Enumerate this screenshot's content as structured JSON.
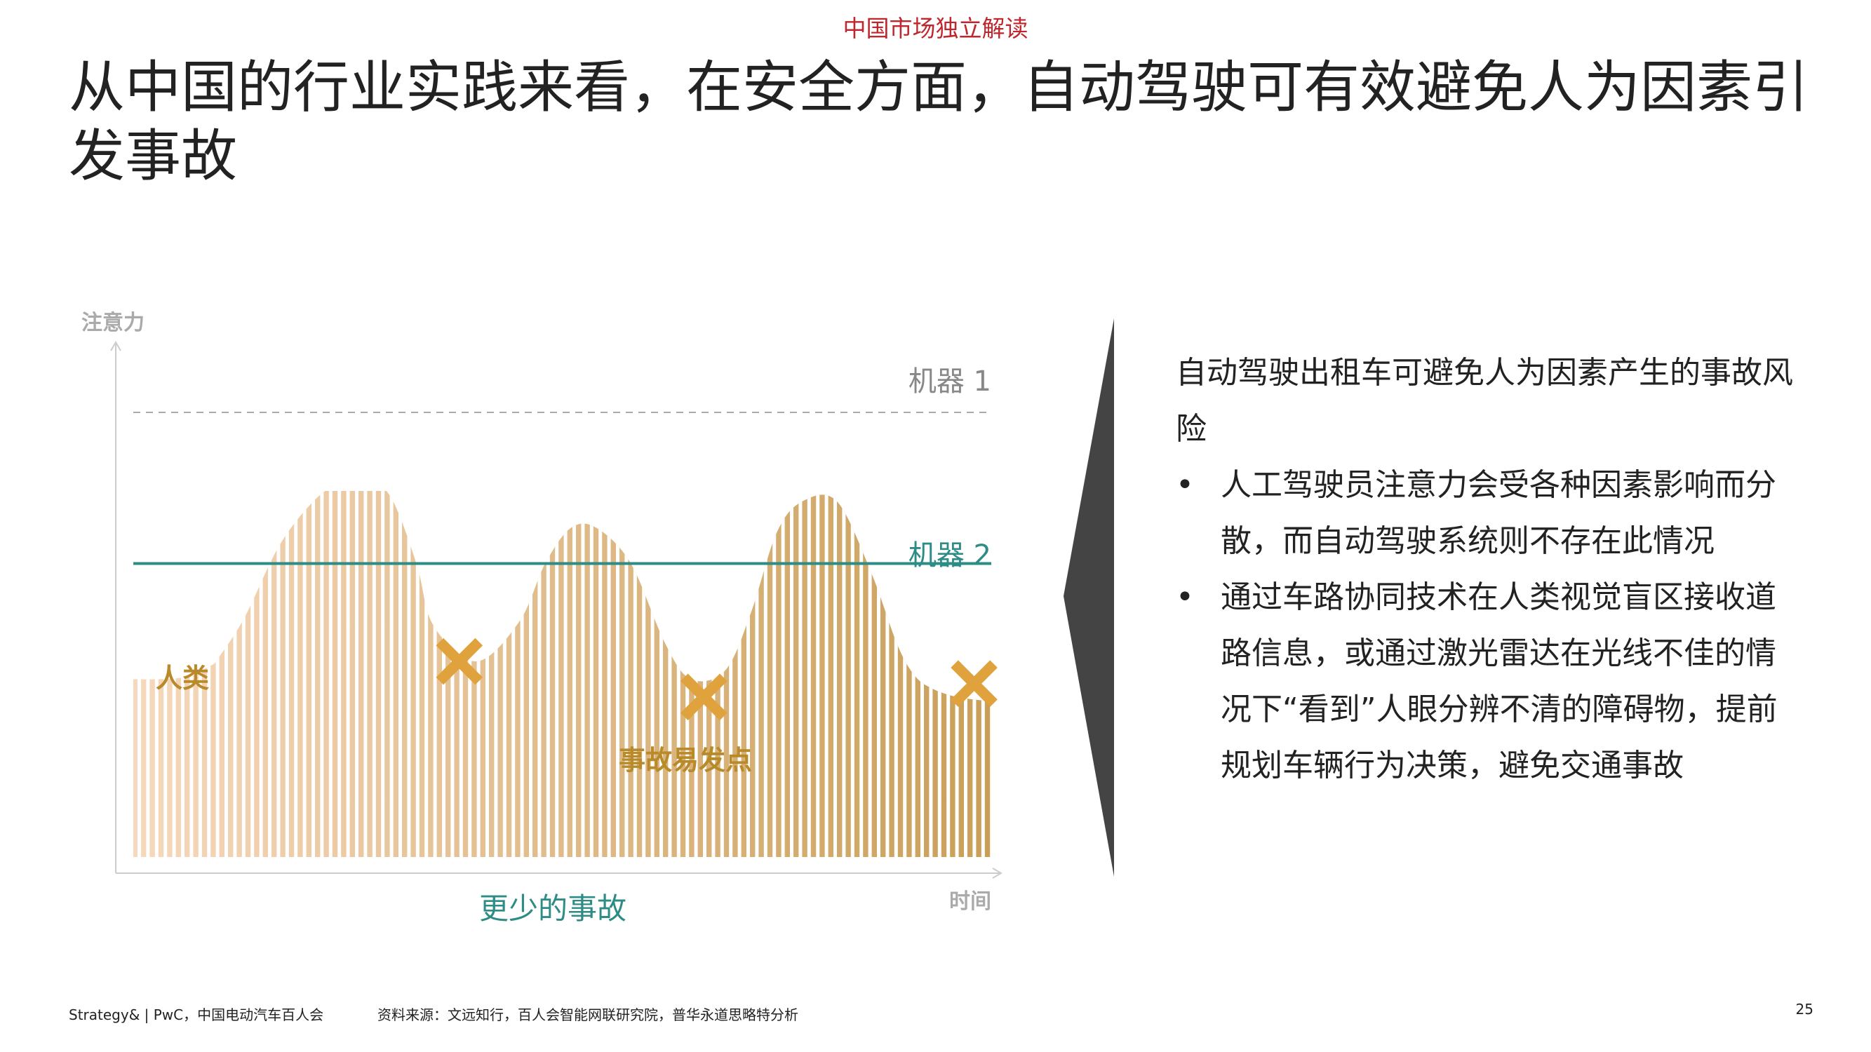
{
  "header": {
    "tag": "中国市场独立解读"
  },
  "title": "从中国的行业实践来看，在安全方面，自动驾驶可有效避免人为因素引发事故",
  "chart_data": {
    "type": "area",
    "y_axis_label": "注意力",
    "x_axis_label": "时间",
    "x_caption": "更少的事故",
    "human": {
      "label": "人类",
      "x": [
        0,
        3,
        6,
        9,
        10,
        13,
        17,
        21,
        24,
        27,
        30,
        33,
        35,
        40,
        45,
        48,
        51,
        54,
        58,
        62,
        65,
        69,
        72,
        75,
        78,
        82,
        86,
        89,
        91,
        93,
        96,
        100
      ],
      "y": [
        40,
        40,
        40.5,
        43,
        45,
        54,
        70,
        80,
        84,
        85,
        81,
        66,
        52,
        44,
        53,
        66,
        74,
        74,
        66,
        48,
        40,
        42,
        55,
        73,
        80,
        80,
        64,
        48,
        41,
        38,
        36,
        35
      ]
    },
    "machine_1": {
      "label": "机器 1",
      "value": 100
    },
    "machine_2": {
      "label": "机器 2",
      "value": 66
    },
    "accident_markers": {
      "label": "事故易发点",
      "points": [
        {
          "x": 38,
          "y": 44
        },
        {
          "x": 66.5,
          "y": 36
        },
        {
          "x": 98,
          "y": 39
        }
      ]
    },
    "ylim": [
      0,
      110
    ],
    "xlim": [
      0,
      100
    ],
    "colors": {
      "area_light": "#f6d8bc",
      "area_dark": "#c99f58",
      "machine_1": "#aaaaaa",
      "machine_2": "#2e8c86",
      "marker": "#dfa23c",
      "label": "#b98a2a",
      "caption": "#2e8c86",
      "axis": "#cccccc"
    }
  },
  "panel": {
    "intro": "自动驾驶出租车可避免人为因素产生的事故风险",
    "bullet_symbol": "•",
    "bullets": [
      "人工驾驶员注意力会受各种因素影响而分散，而自动驾驶系统则不存在此情况",
      "通过车路协同技术在人类视觉盲区接收道路信息，或通过激光雷达在光线不佳的情况下“看到”人眼分辨不清的障碍物，提前规划车辆行为决策，避免交通事故"
    ]
  },
  "footer": {
    "left": "Strategy& | PwC，中国电动汽车百人会",
    "source": "资料来源：文远知行，百人会智能网联研究院，普华永道思略特分析",
    "page_number": "25"
  }
}
